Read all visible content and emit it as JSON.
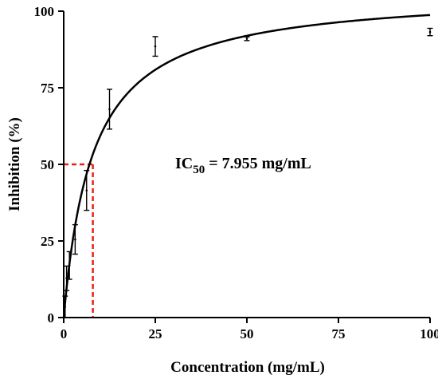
{
  "chart_data": {
    "type": "scatter",
    "xlabel": "Concentration (mg/mL)",
    "ylabel": "Inhibition (%)",
    "xlim": [
      0,
      100
    ],
    "ylim": [
      0,
      100
    ],
    "x_ticks": [
      0,
      25,
      50,
      75,
      100
    ],
    "y_ticks": [
      0,
      25,
      50,
      75,
      100
    ],
    "grid": false,
    "legend": "none",
    "annotation": {
      "prefix": "IC",
      "subscript": "50",
      "suffix": " = 7.955 mg/mL"
    },
    "ic50": {
      "x": 7.955,
      "y": 50
    },
    "points": [
      {
        "x": 0.39,
        "y": 3.5,
        "err": 3.5
      },
      {
        "x": 0.78,
        "y": 12.8,
        "err": 4.0
      },
      {
        "x": 1.56,
        "y": 17.0,
        "err": 4.5
      },
      {
        "x": 3.125,
        "y": 25.5,
        "err": 4.8
      },
      {
        "x": 6.25,
        "y": 41.5,
        "err": 6.5
      },
      {
        "x": 12.5,
        "y": 68.0,
        "err": 6.5
      },
      {
        "x": 25,
        "y": 88.5,
        "err": 3.2
      },
      {
        "x": 50,
        "y": 91.0,
        "err": 0.6
      },
      {
        "x": 100,
        "y": 93.2,
        "err": 1.2
      }
    ],
    "fit_curve": {
      "bottom": 0,
      "top": 106.6,
      "ic50": 7.955,
      "hill": 1
    },
    "colors": {
      "data": "#000000",
      "fit": "#000000",
      "ic50_guide": "#e8221b"
    }
  }
}
